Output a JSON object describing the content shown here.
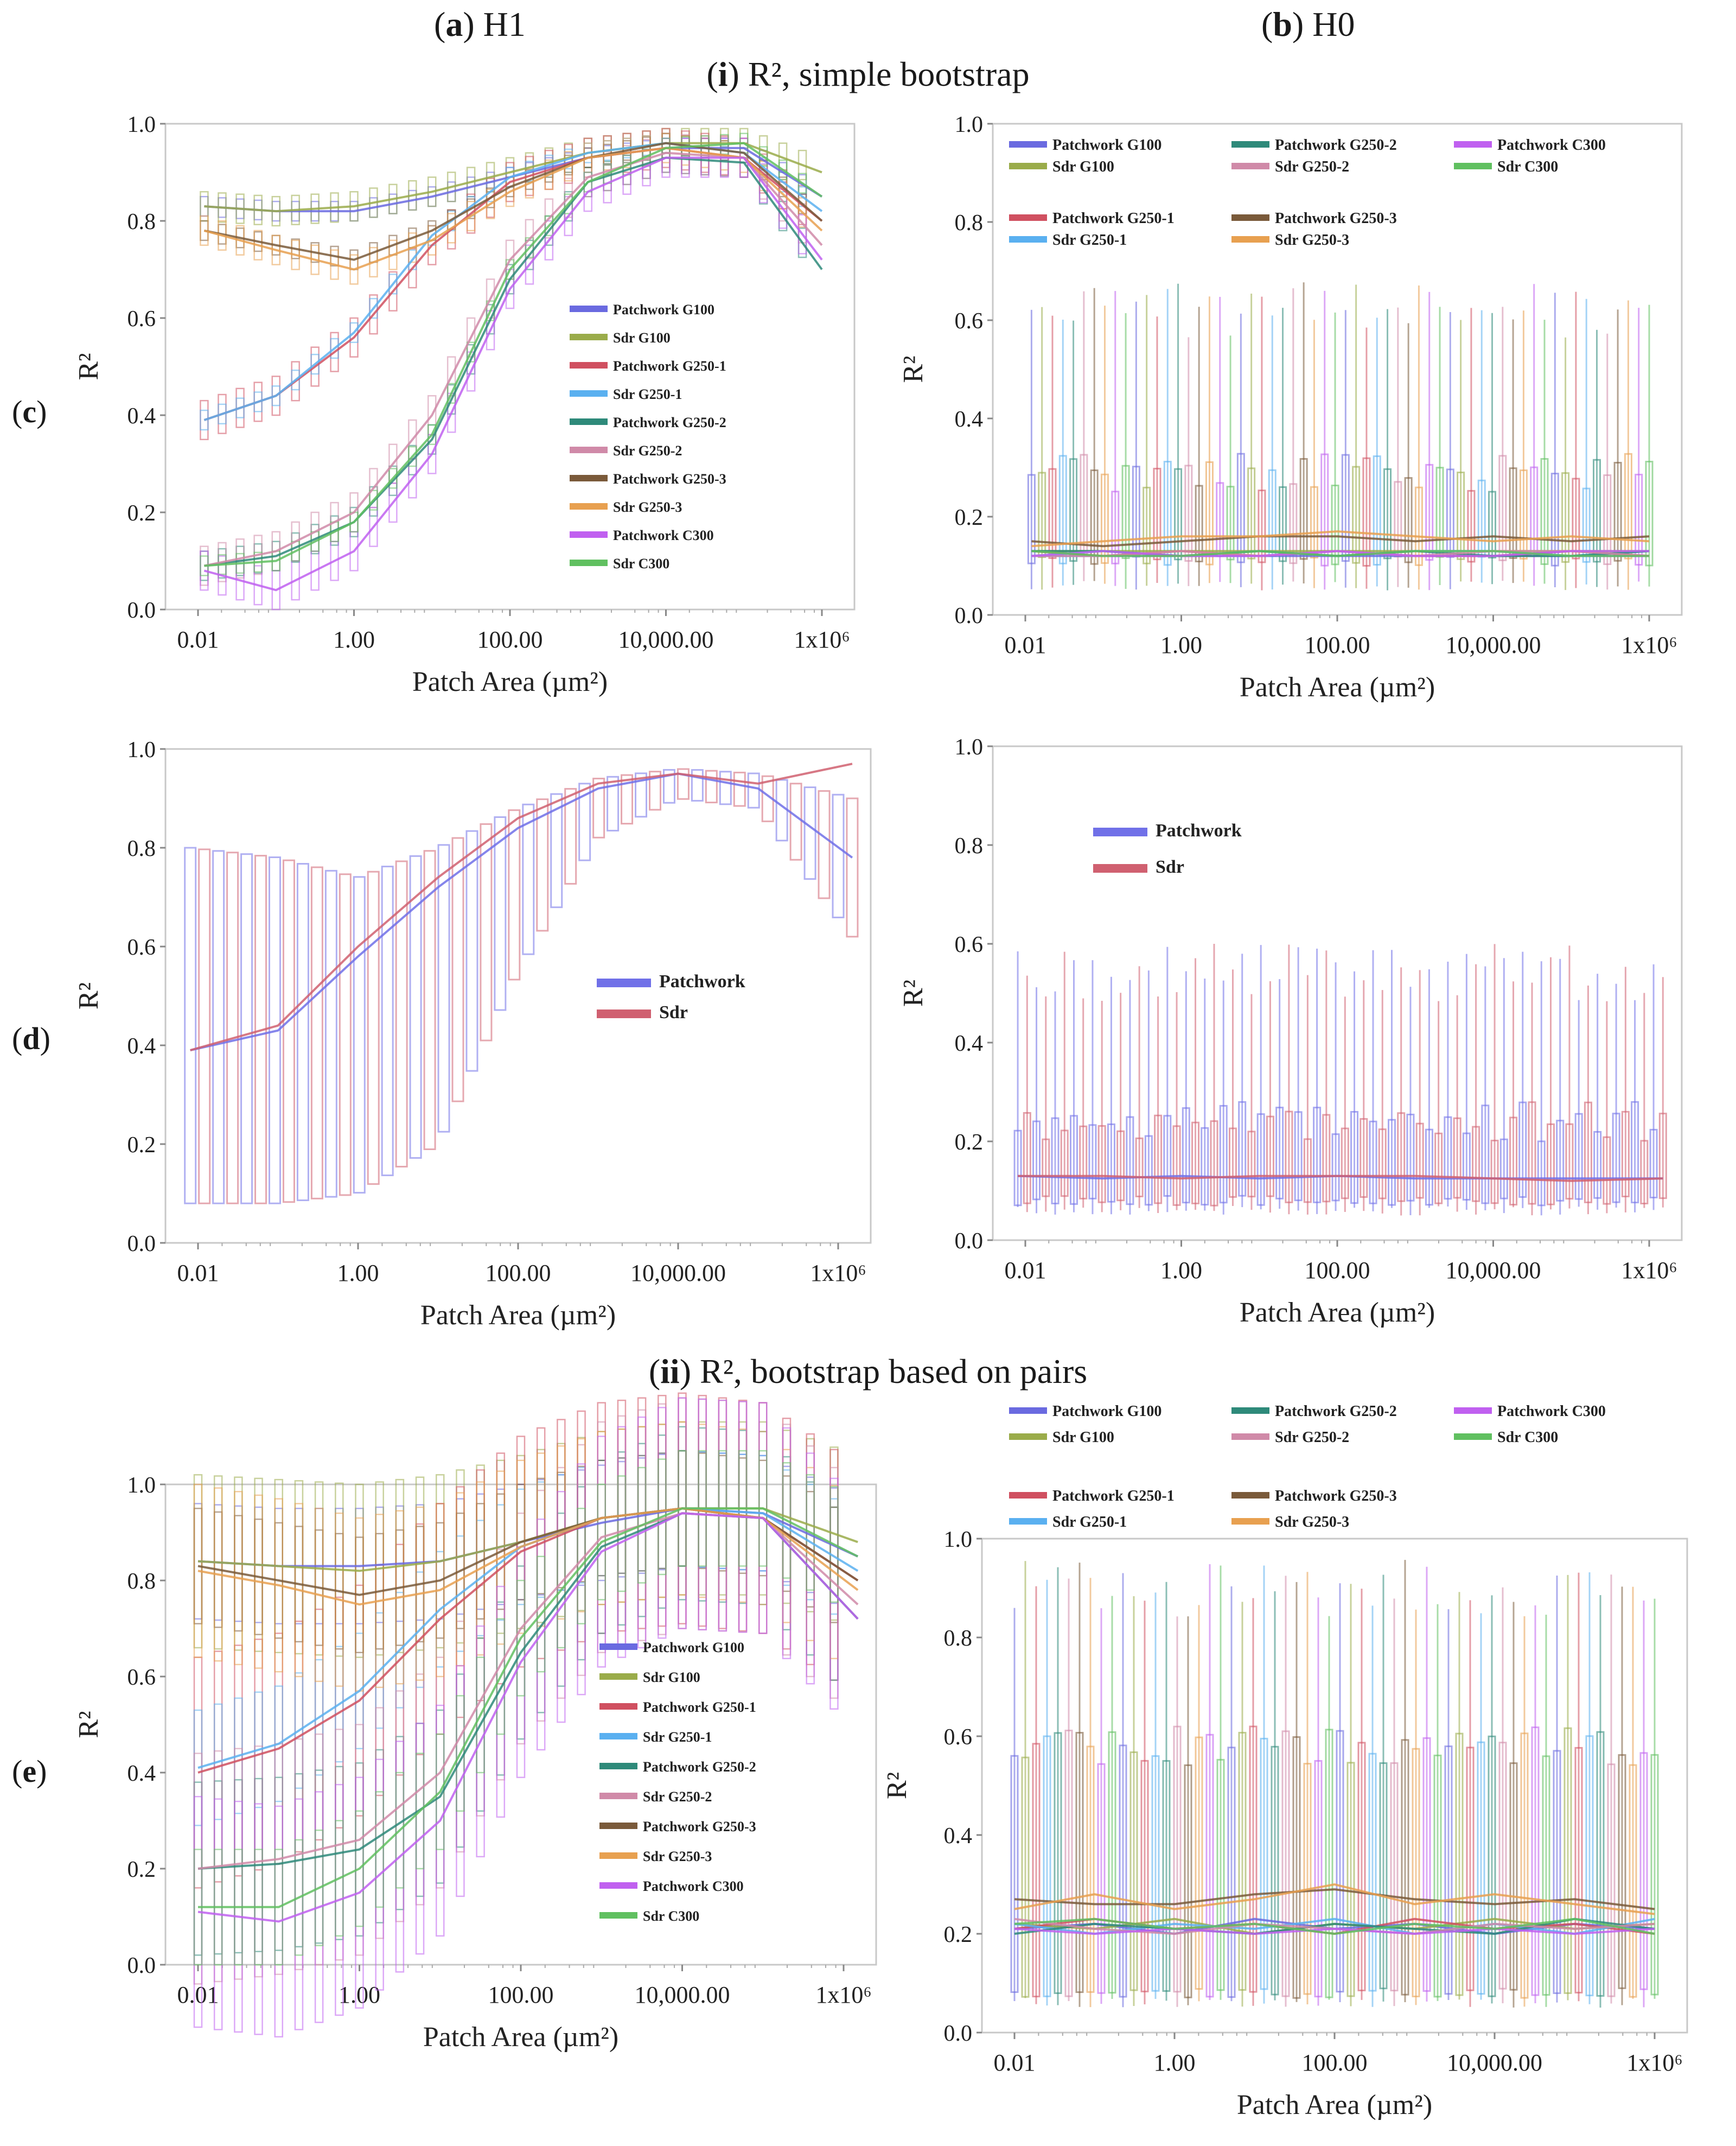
{
  "headers": {
    "col_a_tag": "a",
    "col_a_text": "H1",
    "col_b_tag": "b",
    "col_b_text": "H0",
    "sec1_tag": "i",
    "sec1_text": "R², simple bootstrap",
    "sec2_tag": "ii",
    "sec2_text": "R², bootstrap based on pairs",
    "row_c": "c",
    "row_d": "d",
    "row_e": "e"
  },
  "colors": {
    "Patchwork G100": "#6a6ae0",
    "Sdr G100": "#9aac4a",
    "Patchwork G250-1": "#d05060",
    "Sdr G250-1": "#5ab0f0",
    "Patchwork G250-2": "#2e8a7a",
    "Sdr G250-2": "#d08aa8",
    "Patchwork G250-3": "#7a5a3a",
    "Sdr G250-3": "#e8a050",
    "Patchwork C300": "#c060f0",
    "Sdr C300": "#60c060",
    "Patchwork": "#7070e8",
    "Sdr": "#d06070"
  },
  "chart_data": [
    {
      "id": "c-H1",
      "type": "line",
      "xlabel": "Patch Area (µm²)",
      "ylabel": "R²",
      "x_scale": "log",
      "xlim": [
        0.01,
        1000000
      ],
      "ylim": [
        0,
        1
      ],
      "xticks": [
        "0.01",
        "1.00",
        "100.00",
        "10,000.00",
        "1x10⁶"
      ],
      "yticks": [
        "0.0",
        "0.2",
        "0.4",
        "0.6",
        "0.8",
        "1.0"
      ],
      "legend": [
        "Patchwork G100",
        "Sdr G100",
        "Patchwork G250-1",
        "Sdr G250-1",
        "Patchwork G250-2",
        "Sdr G250-2",
        "Patchwork G250-3",
        "Sdr G250-3",
        "Patchwork C300",
        "Sdr C300"
      ],
      "legend_layout": "column",
      "x": [
        0.012,
        0.1,
        1,
        10,
        100,
        1000,
        10000,
        100000,
        1000000
      ],
      "series": [
        {
          "name": "Patchwork G100",
          "values": [
            0.83,
            0.82,
            0.82,
            0.85,
            0.89,
            0.93,
            0.95,
            0.95,
            0.85
          ]
        },
        {
          "name": "Sdr G100",
          "values": [
            0.83,
            0.82,
            0.83,
            0.86,
            0.9,
            0.94,
            0.96,
            0.96,
            0.9
          ]
        },
        {
          "name": "Patchwork G250-1",
          "values": [
            0.39,
            0.44,
            0.56,
            0.75,
            0.88,
            0.93,
            0.95,
            0.93,
            0.8
          ]
        },
        {
          "name": "Sdr G250-1",
          "values": [
            0.39,
            0.44,
            0.57,
            0.77,
            0.89,
            0.94,
            0.96,
            0.94,
            0.82
          ]
        },
        {
          "name": "Patchwork G250-2",
          "values": [
            0.09,
            0.11,
            0.18,
            0.35,
            0.68,
            0.88,
            0.93,
            0.92,
            0.7
          ]
        },
        {
          "name": "Sdr G250-2",
          "values": [
            0.09,
            0.12,
            0.2,
            0.4,
            0.72,
            0.89,
            0.94,
            0.93,
            0.75
          ]
        },
        {
          "name": "Patchwork G250-3",
          "values": [
            0.78,
            0.75,
            0.72,
            0.78,
            0.87,
            0.93,
            0.96,
            0.94,
            0.8
          ]
        },
        {
          "name": "Sdr G250-3",
          "values": [
            0.78,
            0.74,
            0.7,
            0.76,
            0.86,
            0.93,
            0.95,
            0.93,
            0.78
          ]
        },
        {
          "name": "Patchwork C300",
          "values": [
            0.08,
            0.04,
            0.12,
            0.32,
            0.66,
            0.86,
            0.93,
            0.93,
            0.72
          ]
        },
        {
          "name": "Sdr C300",
          "values": [
            0.09,
            0.1,
            0.18,
            0.36,
            0.7,
            0.88,
            0.95,
            0.96,
            0.85
          ]
        }
      ],
      "box_h": 0.02
    },
    {
      "id": "c-H0",
      "type": "line",
      "xlabel": "Patch Area (µm²)",
      "ylabel": "R²",
      "x_scale": "log",
      "xlim": [
        0.01,
        1000000
      ],
      "ylim": [
        0,
        1
      ],
      "xticks": [
        "0.01",
        "1.00",
        "100.00",
        "10,000.00",
        "1x10⁶"
      ],
      "yticks": [
        "0.0",
        "0.2",
        "0.4",
        "0.6",
        "0.8",
        "1.0"
      ],
      "legend": [
        "Patchwork G100",
        "Sdr G100",
        "Patchwork G250-2",
        "Sdr G250-2",
        "Patchwork C300",
        "Sdr C300",
        "Patchwork G250-1",
        "Sdr G250-1",
        "Patchwork G250-3",
        "Sdr G250-3"
      ],
      "legend_layout": "grid",
      "x": [
        0.012,
        0.1,
        1,
        10,
        100,
        1000,
        10000,
        100000,
        1000000
      ],
      "series": [
        {
          "name": "Patchwork G100",
          "values": [
            0.12,
            0.12,
            0.12,
            0.12,
            0.12,
            0.12,
            0.12,
            0.12,
            0.12
          ]
        },
        {
          "name": "Sdr G100",
          "values": [
            0.13,
            0.13,
            0.13,
            0.13,
            0.13,
            0.13,
            0.13,
            0.13,
            0.13
          ]
        },
        {
          "name": "Patchwork G250-1",
          "values": [
            0.13,
            0.12,
            0.13,
            0.12,
            0.13,
            0.12,
            0.12,
            0.13,
            0.12
          ]
        },
        {
          "name": "Sdr G250-1",
          "values": [
            0.12,
            0.13,
            0.12,
            0.13,
            0.12,
            0.13,
            0.13,
            0.12,
            0.13
          ]
        },
        {
          "name": "Patchwork G250-2",
          "values": [
            0.13,
            0.13,
            0.12,
            0.13,
            0.12,
            0.13,
            0.12,
            0.12,
            0.13
          ]
        },
        {
          "name": "Sdr G250-2",
          "values": [
            0.12,
            0.12,
            0.13,
            0.12,
            0.13,
            0.12,
            0.13,
            0.13,
            0.12
          ]
        },
        {
          "name": "Patchwork G250-3",
          "values": [
            0.15,
            0.14,
            0.15,
            0.16,
            0.16,
            0.15,
            0.16,
            0.15,
            0.16
          ]
        },
        {
          "name": "Sdr G250-3",
          "values": [
            0.14,
            0.15,
            0.16,
            0.16,
            0.17,
            0.16,
            0.15,
            0.16,
            0.15
          ]
        },
        {
          "name": "Patchwork C300",
          "values": [
            0.12,
            0.13,
            0.12,
            0.12,
            0.13,
            0.12,
            0.12,
            0.13,
            0.13
          ]
        },
        {
          "name": "Sdr C300",
          "values": [
            0.13,
            0.12,
            0.12,
            0.13,
            0.12,
            0.13,
            0.13,
            0.12,
            0.12
          ]
        }
      ],
      "noise_boxes": {
        "count": 60,
        "low": 0.05,
        "q1": 0.1,
        "q3": 0.33,
        "high": 0.68
      }
    },
    {
      "id": "d-H1",
      "type": "line",
      "xlabel": "Patch Area (µm²)",
      "ylabel": "R²",
      "x_scale": "log",
      "xlim": [
        0.01,
        1000000
      ],
      "ylim": [
        0,
        1
      ],
      "xticks": [
        "0.01",
        "1.00",
        "100.00",
        "10,000.00",
        "1x10⁶"
      ],
      "yticks": [
        "0.0",
        "0.2",
        "0.4",
        "0.6",
        "0.8",
        "1.0"
      ],
      "legend": [
        "Patchwork",
        "Sdr"
      ],
      "legend_layout": "column",
      "x": [
        0.008,
        0.1,
        1,
        10,
        100,
        1000,
        10000,
        100000,
        1500000
      ],
      "series": [
        {
          "name": "Patchwork",
          "values": [
            0.39,
            0.43,
            0.58,
            0.72,
            0.84,
            0.92,
            0.95,
            0.92,
            0.78
          ]
        },
        {
          "name": "Sdr",
          "values": [
            0.39,
            0.44,
            0.6,
            0.74,
            0.86,
            0.93,
            0.95,
            0.93,
            0.97
          ]
        }
      ],
      "boxes": {
        "low": [
          0.08,
          0.08,
          0.1,
          0.2,
          0.55,
          0.82,
          0.9,
          0.88,
          0.62
        ],
        "high": [
          0.8,
          0.78,
          0.74,
          0.8,
          0.88,
          0.94,
          0.96,
          0.95,
          0.9
        ]
      }
    },
    {
      "id": "d-H0",
      "type": "line",
      "xlabel": "Patch Area (µm²)",
      "ylabel": "R²",
      "x_scale": "log",
      "xlim": [
        0.01,
        1000000
      ],
      "ylim": [
        0,
        1
      ],
      "xticks": [
        "0.01",
        "1.00",
        "100.00",
        "10,000.00",
        "1x10⁶"
      ],
      "yticks": [
        "0.0",
        "0.2",
        "0.4",
        "0.6",
        "0.8",
        "1.0"
      ],
      "legend": [
        "Patchwork",
        "Sdr"
      ],
      "legend_layout": "column",
      "x": [
        0.008,
        0.1,
        1,
        10,
        100,
        1000,
        10000,
        100000,
        1500000
      ],
      "series": [
        {
          "name": "Patchwork",
          "values": [
            0.13,
            0.125,
            0.13,
            0.125,
            0.13,
            0.125,
            0.125,
            0.125,
            0.125
          ]
        },
        {
          "name": "Sdr",
          "values": [
            0.13,
            0.13,
            0.125,
            0.13,
            0.13,
            0.13,
            0.125,
            0.12,
            0.125
          ]
        }
      ],
      "noise_boxes": {
        "count": 70,
        "low": 0.05,
        "q1": 0.07,
        "q3": 0.28,
        "high": 0.6
      }
    },
    {
      "id": "e-H1",
      "type": "line",
      "xlabel": "Patch Area (µm²)",
      "ylabel": "R²",
      "x_scale": "log",
      "xlim": [
        0.01,
        1000000
      ],
      "ylim": [
        0,
        1
      ],
      "xticks": [
        "0.01",
        "1.00",
        "100.00",
        "10,000.00",
        "1x10⁶"
      ],
      "yticks": [
        "0.0",
        "0.2",
        "0.4",
        "0.6",
        "0.8",
        "1.0"
      ],
      "legend": [
        "Patchwork G100",
        "Sdr G100",
        "Patchwork G250-1",
        "Sdr G250-1",
        "Patchwork G250-2",
        "Sdr G250-2",
        "Patchwork G250-3",
        "Sdr G250-3",
        "Patchwork C300",
        "Sdr C300"
      ],
      "legend_layout": "column",
      "x": [
        0.01,
        0.1,
        1,
        10,
        100,
        1000,
        10000,
        100000,
        1500000
      ],
      "series": [
        {
          "name": "Patchwork G100",
          "values": [
            0.84,
            0.83,
            0.83,
            0.84,
            0.88,
            0.92,
            0.95,
            0.94,
            0.85
          ]
        },
        {
          "name": "Sdr G100",
          "values": [
            0.84,
            0.83,
            0.82,
            0.84,
            0.88,
            0.93,
            0.95,
            0.95,
            0.88
          ]
        },
        {
          "name": "Patchwork G250-1",
          "values": [
            0.4,
            0.45,
            0.55,
            0.72,
            0.86,
            0.93,
            0.95,
            0.93,
            0.8
          ]
        },
        {
          "name": "Sdr G250-1",
          "values": [
            0.41,
            0.46,
            0.57,
            0.74,
            0.87,
            0.93,
            0.95,
            0.94,
            0.82
          ]
        },
        {
          "name": "Patchwork G250-2",
          "values": [
            0.2,
            0.21,
            0.24,
            0.35,
            0.65,
            0.87,
            0.94,
            0.93,
            0.72
          ]
        },
        {
          "name": "Sdr G250-2",
          "values": [
            0.2,
            0.22,
            0.26,
            0.4,
            0.7,
            0.89,
            0.94,
            0.93,
            0.75
          ]
        },
        {
          "name": "Patchwork G250-3",
          "values": [
            0.83,
            0.8,
            0.77,
            0.8,
            0.88,
            0.93,
            0.95,
            0.93,
            0.8
          ]
        },
        {
          "name": "Sdr G250-3",
          "values": [
            0.82,
            0.79,
            0.75,
            0.78,
            0.87,
            0.93,
            0.95,
            0.93,
            0.78
          ]
        },
        {
          "name": "Patchwork C300",
          "values": [
            0.11,
            0.09,
            0.15,
            0.3,
            0.63,
            0.86,
            0.94,
            0.93,
            0.72
          ]
        },
        {
          "name": "Sdr C300",
          "values": [
            0.12,
            0.12,
            0.2,
            0.36,
            0.68,
            0.88,
            0.95,
            0.95,
            0.85
          ]
        }
      ],
      "box_h": 0.12
    },
    {
      "id": "e-H0",
      "type": "line",
      "xlabel": "Patch Area (µm²)",
      "ylabel": "R²",
      "x_scale": "log",
      "xlim": [
        0.01,
        1000000
      ],
      "ylim": [
        0,
        1
      ],
      "xticks": [
        "0.01",
        "1.00",
        "100.00",
        "10,000.00",
        "1x10⁶"
      ],
      "yticks": [
        "0.0",
        "0.2",
        "0.4",
        "0.6",
        "0.8",
        "1.0"
      ],
      "legend": [
        "Patchwork G100",
        "Sdr G100",
        "Patchwork G250-2",
        "Sdr G250-2",
        "Patchwork C300",
        "Sdr C300",
        "Patchwork G250-1",
        "Sdr G250-1",
        "Patchwork G250-3",
        "Sdr G250-3"
      ],
      "legend_layout": "grid-outside",
      "x": [
        0.01,
        0.1,
        1,
        10,
        100,
        1000,
        10000,
        100000,
        1000000
      ],
      "series": [
        {
          "name": "Patchwork G100",
          "values": [
            0.21,
            0.22,
            0.2,
            0.23,
            0.21,
            0.22,
            0.2,
            0.22,
            0.21
          ]
        },
        {
          "name": "Sdr G100",
          "values": [
            0.22,
            0.21,
            0.23,
            0.2,
            0.22,
            0.21,
            0.23,
            0.21,
            0.22
          ]
        },
        {
          "name": "Patchwork G250-1",
          "values": [
            0.21,
            0.23,
            0.21,
            0.22,
            0.2,
            0.23,
            0.21,
            0.22,
            0.2
          ]
        },
        {
          "name": "Sdr G250-1",
          "values": [
            0.22,
            0.2,
            0.22,
            0.21,
            0.23,
            0.2,
            0.22,
            0.2,
            0.23
          ]
        },
        {
          "name": "Patchwork G250-2",
          "values": [
            0.2,
            0.22,
            0.21,
            0.2,
            0.22,
            0.21,
            0.2,
            0.23,
            0.21
          ]
        },
        {
          "name": "Sdr G250-2",
          "values": [
            0.23,
            0.21,
            0.2,
            0.22,
            0.21,
            0.2,
            0.22,
            0.21,
            0.22
          ]
        },
        {
          "name": "Patchwork G250-3",
          "values": [
            0.27,
            0.26,
            0.26,
            0.28,
            0.29,
            0.27,
            0.26,
            0.27,
            0.25
          ]
        },
        {
          "name": "Sdr G250-3",
          "values": [
            0.25,
            0.28,
            0.25,
            0.27,
            0.3,
            0.26,
            0.28,
            0.26,
            0.24
          ]
        },
        {
          "name": "Patchwork C300",
          "values": [
            0.21,
            0.2,
            0.21,
            0.2,
            0.21,
            0.2,
            0.21,
            0.2,
            0.21
          ]
        },
        {
          "name": "Sdr C300",
          "values": [
            0.22,
            0.23,
            0.21,
            0.22,
            0.2,
            0.22,
            0.21,
            0.23,
            0.2
          ]
        }
      ],
      "noise_boxes": {
        "count": 60,
        "low": 0.05,
        "q1": 0.07,
        "q3": 0.62,
        "high": 0.96
      }
    }
  ]
}
